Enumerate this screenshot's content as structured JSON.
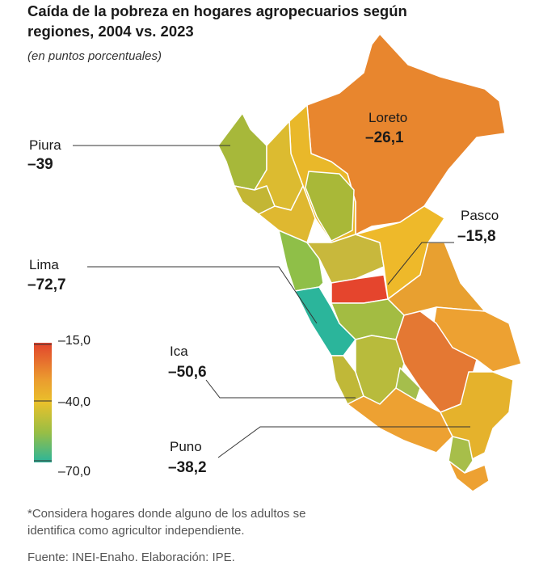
{
  "header": {
    "title": [
      "Caída de la pobreza en hogares agropecuarios según",
      "regiones, 2004 vs. 2023"
    ],
    "subtitle": "(en puntos porcentuales)"
  },
  "regions": [
    {
      "name": "Piura",
      "value": "–39"
    },
    {
      "name": "Loreto",
      "value": "–26,1"
    },
    {
      "name": "Pasco",
      "value": "–15,8"
    },
    {
      "name": "Lima",
      "value": "–72,7"
    },
    {
      "name": "Ica",
      "value": "–50,6"
    },
    {
      "name": "Puno",
      "value": "–38,2"
    }
  ],
  "legend": {
    "ticks": [
      "–15,0",
      "–40,0",
      "–70,0"
    ]
  },
  "footer": {
    "note": [
      "*Considera hogares donde alguno de los adultos se",
      "identifica como agricultor independiente."
    ],
    "source": "Fuente: INEI-Enaho. Elaboración: IPE."
  }
}
